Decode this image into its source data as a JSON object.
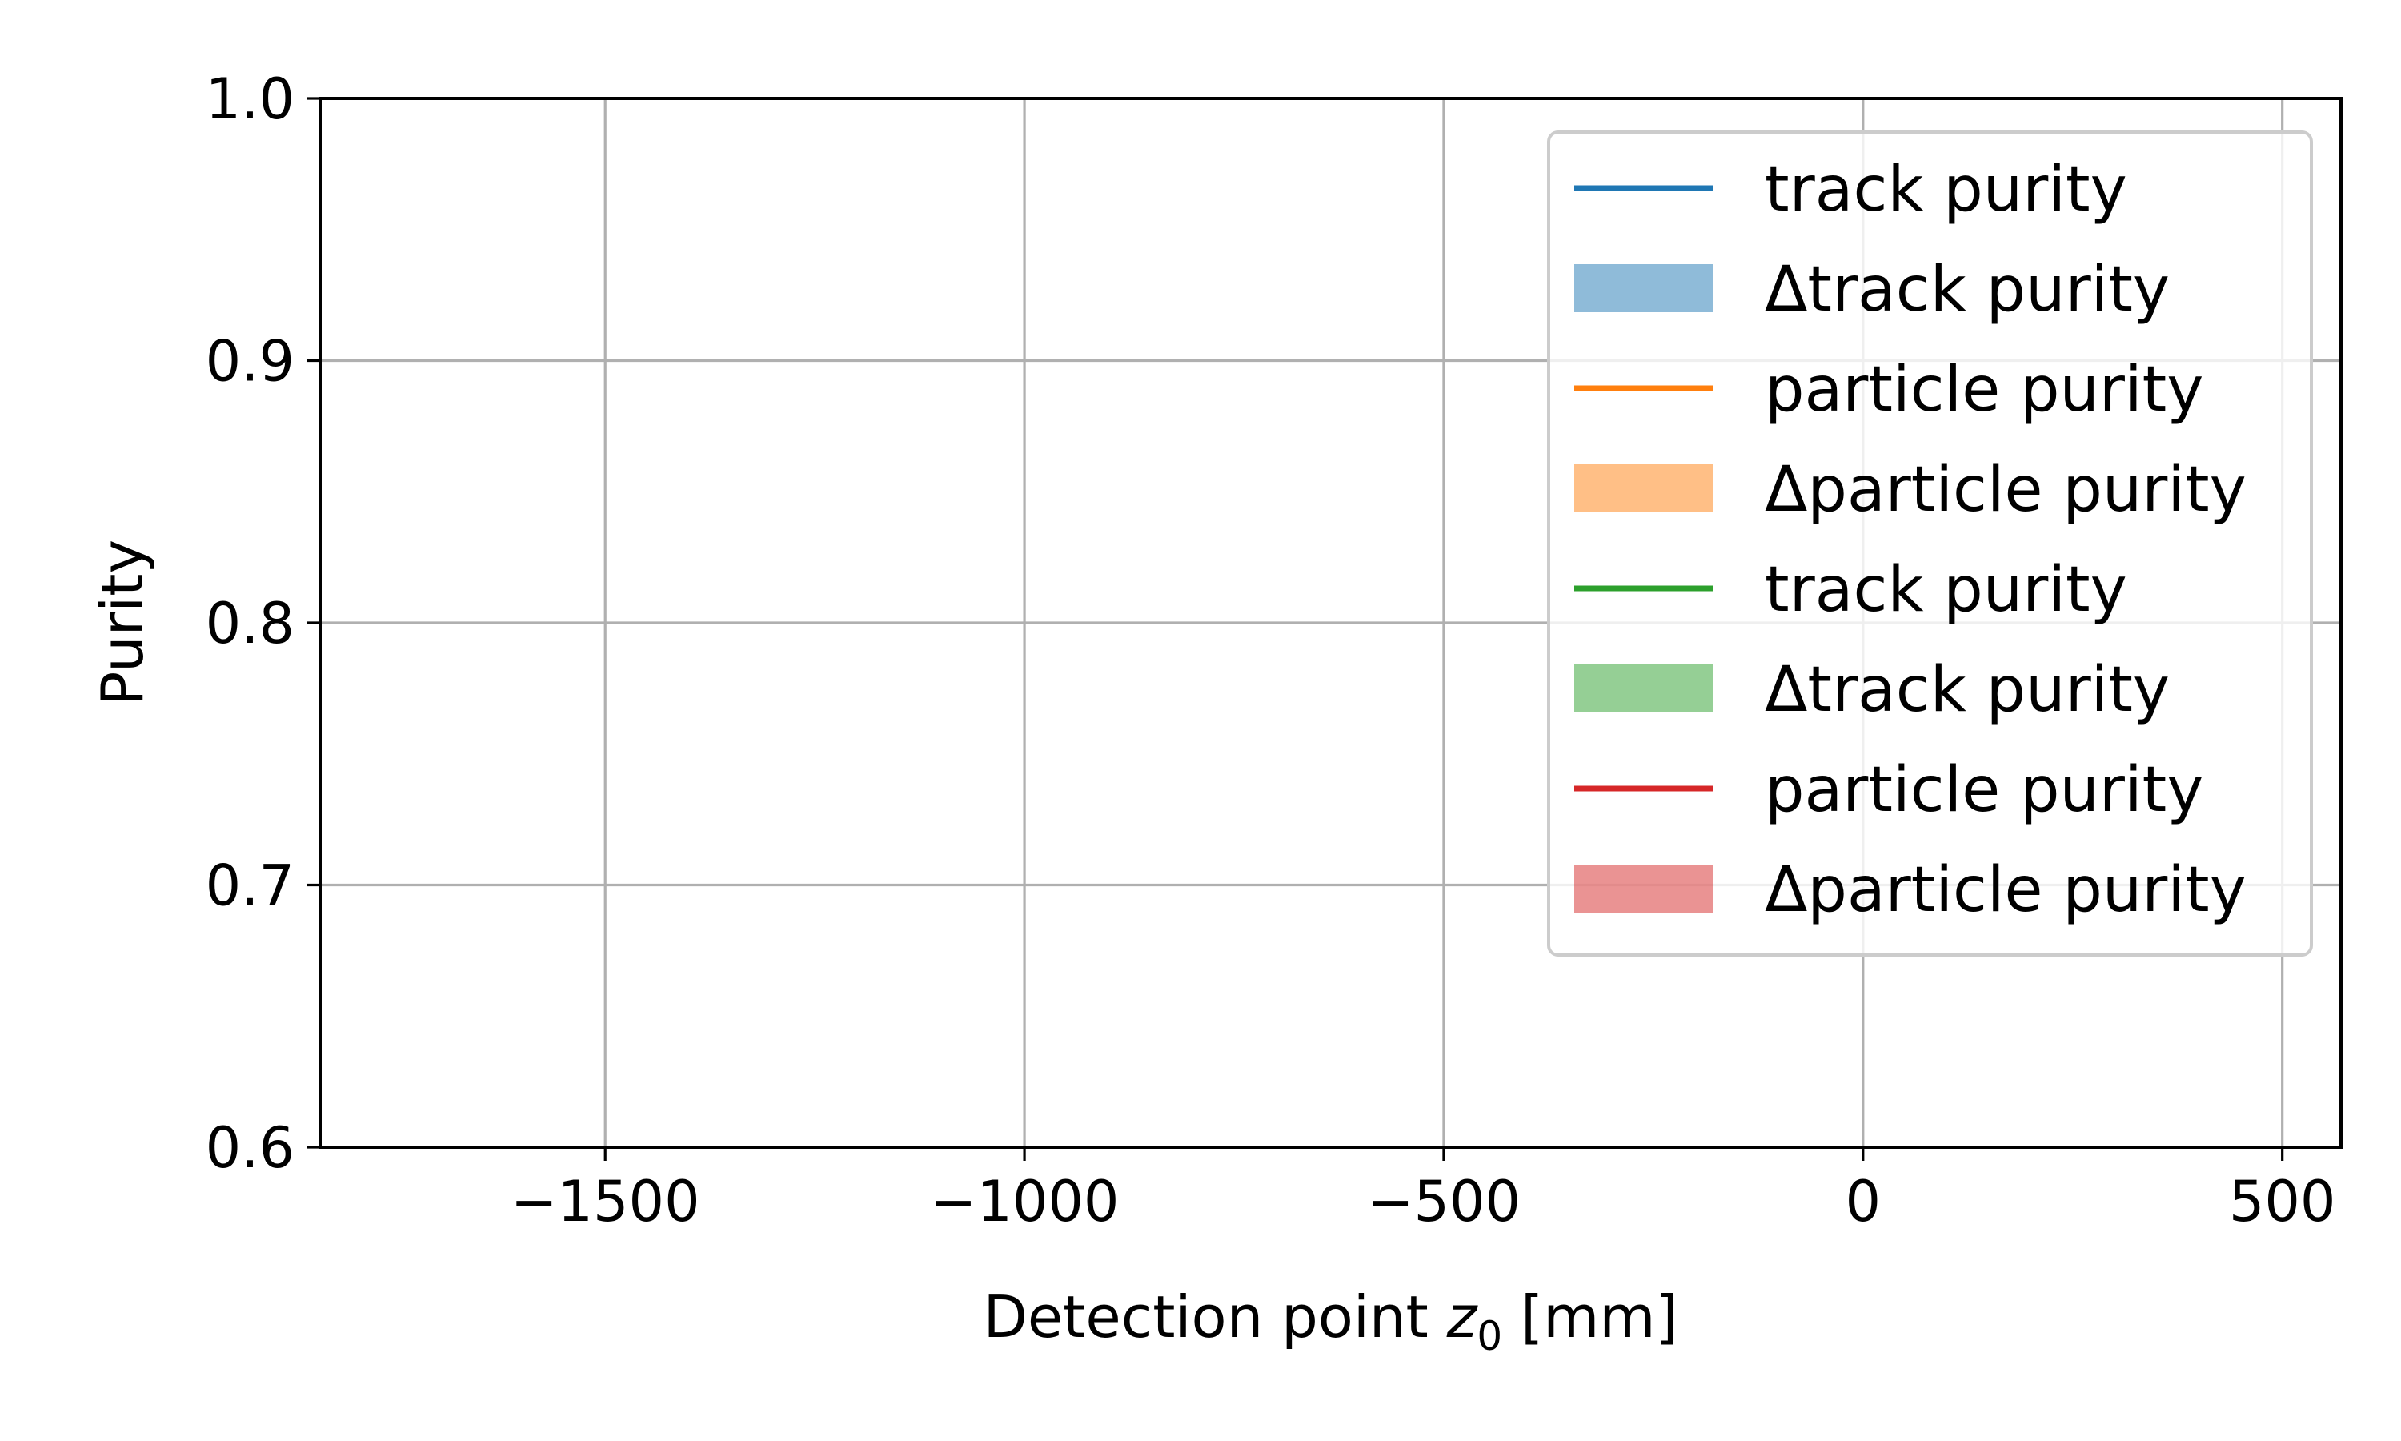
{
  "chart_data": {
    "type": "line",
    "title": "",
    "xlabel_main": "Detection point ",
    "xlabel_var": "z",
    "xlabel_sub": "0",
    "xlabel_unit": " [mm]",
    "ylabel": "Purity",
    "xlim": [
      -1840,
      570
    ],
    "ylim": [
      0.6,
      1.0
    ],
    "xticks": [
      -1500,
      -1000,
      -500,
      0,
      500
    ],
    "xtick_labels": [
      "−1500",
      "−1000",
      "−500",
      "0",
      "500"
    ],
    "yticks": [
      0.6,
      0.7,
      0.8,
      0.9,
      1.0
    ],
    "ytick_labels": [
      "0.6",
      "0.7",
      "0.8",
      "0.9",
      "1.0"
    ],
    "grid": true,
    "legend_position": "top-right",
    "series": [
      {
        "name": "track purity",
        "kind": "line",
        "color": "#1f77b4",
        "values": []
      },
      {
        "name": "Δtrack purity",
        "kind": "band",
        "color": "#1f77b4",
        "values": []
      },
      {
        "name": "particle purity",
        "kind": "line",
        "color": "#ff7f0e",
        "values": []
      },
      {
        "name": "Δparticle purity",
        "kind": "band",
        "color": "#ff7f0e",
        "values": []
      },
      {
        "name": "track purity",
        "kind": "line",
        "color": "#2ca02c",
        "values": []
      },
      {
        "name": "Δtrack purity",
        "kind": "band",
        "color": "#2ca02c",
        "values": []
      },
      {
        "name": "particle purity",
        "kind": "line",
        "color": "#d62728",
        "values": []
      },
      {
        "name": "Δparticle purity",
        "kind": "band",
        "color": "#d62728",
        "values": []
      }
    ]
  }
}
